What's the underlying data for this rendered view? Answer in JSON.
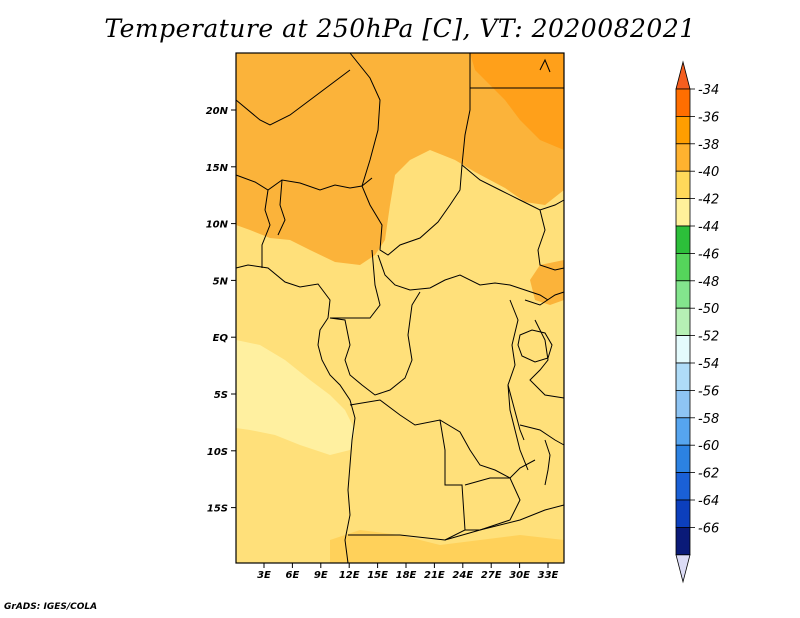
{
  "title": "Temperature at 250hPa [C], VT: 2020082021",
  "credit": "GrADS: IGES/COLA",
  "map": {
    "lon_labels": [
      "3E",
      "6E",
      "9E",
      "12E",
      "15E",
      "18E",
      "21E",
      "24E",
      "27E",
      "30E",
      "33E"
    ],
    "lat_labels": [
      "20N",
      "15N",
      "10N",
      "5N",
      "EQ",
      "5S",
      "10S",
      "15S"
    ]
  },
  "colorbar": {
    "labels": [
      "-34",
      "-36",
      "-38",
      "-40",
      "-42",
      "-44",
      "-46",
      "-48",
      "-50",
      "-52",
      "-54",
      "-56",
      "-58",
      "-60",
      "-62",
      "-64",
      "-66"
    ],
    "colors": [
      "#f45e1f",
      "#ff6e00",
      "#ff9e00",
      "#ffb22f",
      "#ffd95a",
      "#fff19a",
      "#2cbf3a",
      "#55d55b",
      "#83e58d",
      "#b6f0b5",
      "#e4fbfd",
      "#afdcf8",
      "#8ec4f3",
      "#56a5ef",
      "#2c82e2",
      "#1a60d6",
      "#0c3fbd",
      "#0a1a78",
      "#dcdcf6"
    ]
  }
}
